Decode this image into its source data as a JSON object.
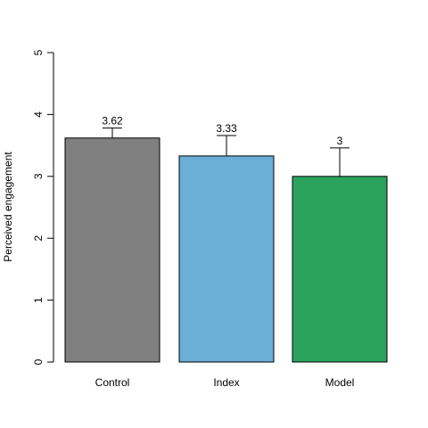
{
  "chart_data": {
    "type": "bar",
    "title": "",
    "xlabel": "",
    "ylabel": "Perceived engagement",
    "ylim": [
      0,
      5
    ],
    "yticks": [
      0,
      1,
      2,
      3,
      4,
      5
    ],
    "categories": [
      "Control",
      "Index",
      "Model"
    ],
    "values": [
      3.62,
      3.33,
      3
    ],
    "data_labels": [
      "3.62",
      "3.33",
      "3"
    ],
    "error_upper": [
      3.78,
      3.66,
      3.46
    ],
    "colors": [
      "#808080",
      "#6baed6",
      "#2ca25f"
    ],
    "grid": false,
    "legend": "none"
  }
}
